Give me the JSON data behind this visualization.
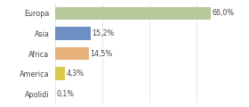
{
  "categories": [
    "Europa",
    "Asia",
    "Africa",
    "America",
    "Apolidi"
  ],
  "values": [
    66.0,
    15.2,
    14.5,
    4.3,
    0.1
  ],
  "labels": [
    "66,0%",
    "15,2%",
    "14,5%",
    "4,3%",
    "0,1%"
  ],
  "bar_colors": [
    "#b5c99a",
    "#6e8fc4",
    "#e8b07a",
    "#dcc84a",
    "#cccccc"
  ],
  "background_color": "#ffffff",
  "xlim": [
    0,
    80
  ],
  "label_fontsize": 5.8,
  "ytick_fontsize": 5.8
}
